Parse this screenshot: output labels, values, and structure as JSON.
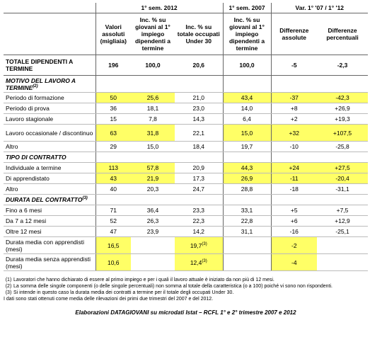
{
  "header": {
    "groups": [
      "1° sem. 2012",
      "1° sem. 2007",
      "Var. 1° '07 / 1° '12"
    ],
    "columns": [
      "Valori assoluti (migliaia)",
      "Inc. % su giovani al 1° impiego dipendenti a termine",
      "Inc. % su totale occupati Under 30",
      "Inc. % su giovani al 1° impiego dipendenti a termine",
      "Differenze assolute",
      "Differenze percentuali"
    ]
  },
  "highlight_color": "#ffff66",
  "total": {
    "label": "TOTALE DIPENDENTI A TERMINE",
    "cells": [
      "196",
      "100,0",
      "20,6",
      "100,0",
      "-5",
      "-2,3"
    ]
  },
  "sections": [
    {
      "title": "MOTIVO DEL LAVORO A TERMINE",
      "note": "(2)",
      "rows": [
        {
          "label": "Periodo di formazione",
          "cells": [
            "50",
            "25,6",
            "21,0",
            "43,4",
            "-37",
            "-42,3"
          ],
          "highlight": [
            0,
            1,
            3,
            4,
            5
          ]
        },
        {
          "label": "Periodo di prova",
          "cells": [
            "36",
            "18,1",
            "23,0",
            "14,0",
            "+8",
            "+26,9"
          ]
        },
        {
          "label": "Lavoro stagionale",
          "cells": [
            "15",
            "7,8",
            "14,3",
            "6,4",
            "+2",
            "+19,3"
          ]
        },
        {
          "label": "Lavoro occasionale / discontinuo",
          "cells": [
            "63",
            "31,8",
            "22,1",
            "15,0",
            "+32",
            "+107,5"
          ],
          "highlight": [
            0,
            1,
            3,
            4,
            5
          ]
        },
        {
          "label": "Altro",
          "cells": [
            "29",
            "15,0",
            "18,4",
            "19,7",
            "-10",
            "-25,8"
          ]
        }
      ]
    },
    {
      "title": "TIPO DI CONTRATTO",
      "rows": [
        {
          "label": "Individuale a termine",
          "cells": [
            "113",
            "57,8",
            "20,9",
            "44,3",
            "+24",
            "+27,5"
          ],
          "highlight": [
            0,
            1,
            3,
            4,
            5
          ]
        },
        {
          "label": "Di apprendistato",
          "cells": [
            "43",
            "21,9",
            "17,3",
            "26,9",
            "-11",
            "-20,4"
          ],
          "highlight": [
            0,
            1,
            3,
            4,
            5
          ]
        },
        {
          "label": "Altro",
          "cells": [
            "40",
            "20,3",
            "24,7",
            "28,8",
            "-18",
            "-31,1"
          ]
        }
      ]
    },
    {
      "title": "DURATA DEL CONTRATTO",
      "note": "(3)",
      "rows": [
        {
          "label": "Fino a 6 mesi",
          "cells": [
            "71",
            "36,4",
            "23,3",
            "33,1",
            "+5",
            "+7,5"
          ]
        },
        {
          "label": "Da 7 a 12 mesi",
          "cells": [
            "52",
            "26,3",
            "22,3",
            "22,8",
            "+6",
            "+12,9"
          ]
        },
        {
          "label": "Oltre 12 mesi",
          "cells": [
            "47",
            "23,9",
            "14,2",
            "31,1",
            "-16",
            "-25,1"
          ]
        },
        {
          "label": "Durata media con apprendisti (mesi)",
          "cells": [
            "16,5",
            null,
            {
              "text": "19,7",
              "note": "(3)"
            },
            null,
            "-2",
            null
          ],
          "highlight": [
            0,
            2,
            4
          ]
        },
        {
          "label": "Durata media senza apprendisti (mesi)",
          "cells": [
            "10,6",
            null,
            {
              "text": "12,4",
              "note": "(3)"
            },
            null,
            "-4",
            null
          ],
          "highlight": [
            0,
            2,
            4
          ]
        }
      ]
    }
  ],
  "footnotes": [
    {
      "mark": "(1)",
      "text": "Lavoratori che hanno dichiarato di essere al primo impiego e per i quali il lavoro attuale è iniziato da non più di 12 mesi."
    },
    {
      "mark": "(2)",
      "text": "La somma delle singole componenti (o delle singole percentuali) non somma al totale della caratteristica (o a 100) poiché vi sono non rispondenti."
    },
    {
      "mark": "(3)",
      "text": "Si intende in questo caso la durata media dei contratti a termine per il totale degli occupati Under 30."
    }
  ],
  "data_note": "I dati sono stati ottenuti come media delle rilevazioni dei primi due trimestri del 2007 e del 2012.",
  "source": "Elaborazioni DATAGIOVANI su microdati Istat – RCFL 1° e 2° trimestre 2007 e 2012"
}
